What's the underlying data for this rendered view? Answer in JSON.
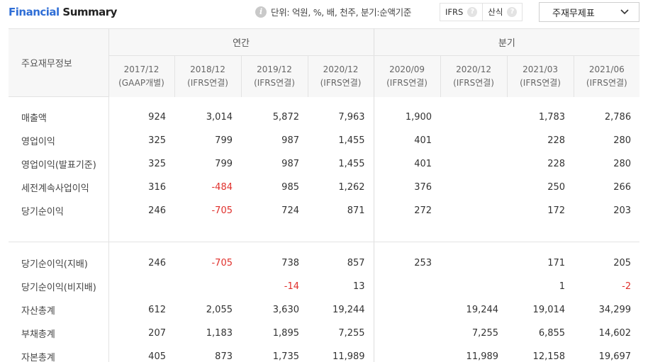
{
  "header": {
    "title_part1": "Financial",
    "title_part2": "Summary",
    "unit_text": "단위: 억원, %, 배, 천주, 분기:순액기준",
    "toggle": [
      {
        "label": "IFRS"
      },
      {
        "label": "산식"
      }
    ],
    "dropdown_label": "주재무제표"
  },
  "table": {
    "row_header_label": "주요재무정보",
    "group_annual": "연간",
    "group_quarter": "분기",
    "columns": [
      {
        "period": "2017/12",
        "basis": "(GAAP개별)"
      },
      {
        "period": "2018/12",
        "basis": "(IFRS연결)"
      },
      {
        "period": "2019/12",
        "basis": "(IFRS연결)"
      },
      {
        "period": "2020/12",
        "basis": "(IFRS연결)"
      },
      {
        "period": "2020/09",
        "basis": "(IFRS연결)"
      },
      {
        "period": "2020/12",
        "basis": "(IFRS연결)"
      },
      {
        "period": "2021/03",
        "basis": "(IFRS연결)"
      },
      {
        "period": "2021/06",
        "basis": "(IFRS연결)"
      }
    ],
    "rows_group1": [
      {
        "label": "매출액",
        "values": [
          "924",
          "3,014",
          "5,872",
          "7,963",
          "1,900",
          "",
          "1,783",
          "2,786"
        ]
      },
      {
        "label": "영업이익",
        "values": [
          "325",
          "799",
          "987",
          "1,455",
          "401",
          "",
          "228",
          "280"
        ]
      },
      {
        "label": "영업이익(발표기준)",
        "values": [
          "325",
          "799",
          "987",
          "1,455",
          "401",
          "",
          "228",
          "280"
        ]
      },
      {
        "label": "세전계속사업이익",
        "values": [
          "316",
          "-484",
          "985",
          "1,262",
          "376",
          "",
          "250",
          "266"
        ]
      },
      {
        "label": "당기순이익",
        "values": [
          "246",
          "-705",
          "724",
          "871",
          "272",
          "",
          "172",
          "203"
        ]
      }
    ],
    "rows_group2": [
      {
        "label": "당기순이익(지배)",
        "values": [
          "246",
          "-705",
          "738",
          "857",
          "253",
          "",
          "171",
          "205"
        ]
      },
      {
        "label": "당기순이익(비지배)",
        "values": [
          "",
          "",
          "-14",
          "13",
          "",
          "",
          "1",
          "-2"
        ]
      },
      {
        "label": "자산총계",
        "values": [
          "612",
          "2,055",
          "3,630",
          "19,244",
          "",
          "19,244",
          "19,014",
          "34,299"
        ]
      },
      {
        "label": "부채총계",
        "values": [
          "207",
          "1,183",
          "1,895",
          "7,255",
          "",
          "7,255",
          "6,855",
          "14,602"
        ]
      },
      {
        "label": "자본총계",
        "values": [
          "405",
          "873",
          "1,735",
          "11,989",
          "",
          "11,989",
          "12,158",
          "19,697"
        ]
      }
    ]
  },
  "colors": {
    "accent": "#2f6ed6",
    "negative": "#e0302c",
    "header_bg": "#f7f7f7"
  }
}
